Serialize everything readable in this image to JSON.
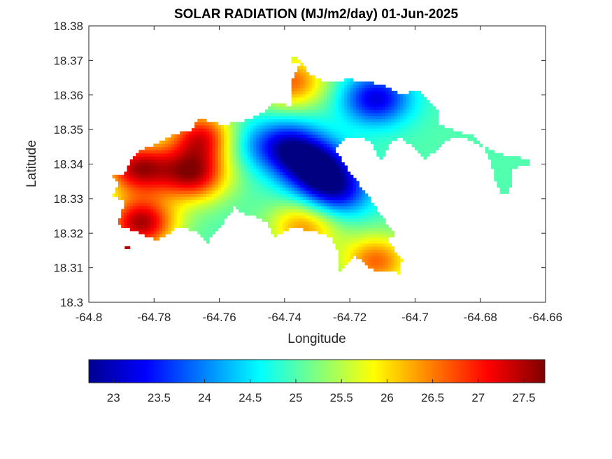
{
  "chart_data": {
    "type": "heatmap",
    "title": "SOLAR RADIATION (MJ/m2/day) 01-Jun-2025",
    "xlabel": "Longitude",
    "ylabel": "Latitude",
    "xlim": [
      -64.8,
      -64.66
    ],
    "ylim": [
      18.3,
      18.38
    ],
    "x_ticks": [
      "-64.8",
      "-64.78",
      "-64.76",
      "-64.74",
      "-64.72",
      "-64.7",
      "-64.68",
      "-64.66"
    ],
    "y_ticks": [
      "18.3",
      "18.31",
      "18.32",
      "18.33",
      "18.34",
      "18.35",
      "18.36",
      "18.37",
      "18.38"
    ],
    "colormap": "jet",
    "colorbar": {
      "range": [
        22.73,
        27.73
      ],
      "ticks": [
        "23",
        "23.5",
        "24",
        "24.5",
        "25",
        "25.5",
        "26",
        "26.5",
        "27",
        "27.5"
      ],
      "location": "bottom"
    },
    "grid": false,
    "approximate_field": {
      "background": 25.0,
      "hotspots": [
        {
          "lon": -64.785,
          "lat": 18.339,
          "value": 27.4
        },
        {
          "lon": -64.768,
          "lat": 18.337,
          "value": 27.3
        },
        {
          "lon": -64.765,
          "lat": 18.348,
          "value": 27.2
        },
        {
          "lon": -64.784,
          "lat": 18.323,
          "value": 27.5
        },
        {
          "lon": -64.73,
          "lat": 18.339,
          "value": 22.9
        },
        {
          "lon": -64.739,
          "lat": 18.345,
          "value": 23.2
        },
        {
          "lon": -64.712,
          "lat": 18.359,
          "value": 23.2
        },
        {
          "lon": -64.724,
          "lat": 18.332,
          "value": 23.4
        },
        {
          "lon": -64.712,
          "lat": 18.312,
          "value": 26.6
        },
        {
          "lon": -64.734,
          "lat": 18.322,
          "value": 26.4
        },
        {
          "lon": -64.738,
          "lat": 18.364,
          "value": 26.6
        },
        {
          "lon": -64.754,
          "lat": 18.347,
          "value": 24.4
        }
      ]
    }
  },
  "colors": {
    "jet": [
      "#00008f",
      "#0000ff",
      "#00ffff",
      "#ffff00",
      "#ff0000",
      "#800000"
    ]
  }
}
